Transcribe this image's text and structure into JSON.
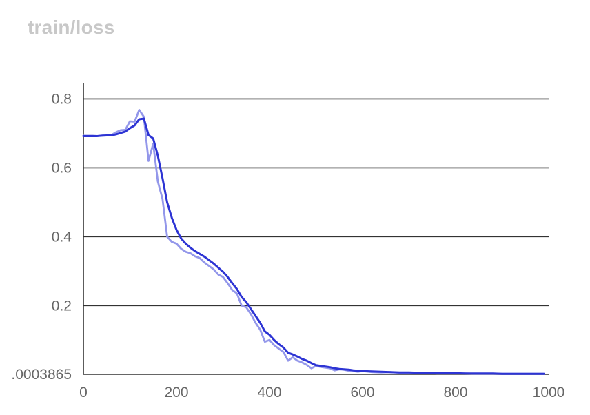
{
  "chart_data": {
    "type": "line",
    "title": "train/loss",
    "xlabel": "",
    "ylabel": "",
    "xlim": [
      0,
      1000
    ],
    "ylim": [
      0.0003865,
      0.845
    ],
    "x_ticks": [
      "0",
      "200",
      "400",
      "600",
      "800",
      "1000"
    ],
    "y_ticks": [
      {
        "value": 0.8,
        "label": "0.8"
      },
      {
        "value": 0.6,
        "label": "0.6"
      },
      {
        "value": 0.4,
        "label": "0.4"
      },
      {
        "value": 0.2,
        "label": "0.2"
      },
      {
        "value": 0.0003865,
        "label": ".0003865"
      }
    ],
    "grid": "horizontal",
    "legend": "none",
    "series": [
      {
        "role": "raw",
        "color": "#9397ea",
        "x": [
          0,
          10,
          20,
          30,
          40,
          50,
          60,
          70,
          80,
          90,
          100,
          110,
          120,
          130,
          140,
          150,
          160,
          170,
          180,
          190,
          200,
          210,
          220,
          230,
          240,
          250,
          260,
          270,
          280,
          290,
          300,
          310,
          320,
          330,
          340,
          350,
          360,
          370,
          380,
          390,
          400,
          410,
          420,
          430,
          440,
          450,
          460,
          470,
          480,
          490,
          500,
          510,
          520,
          530,
          540,
          550,
          560,
          570,
          580,
          590,
          600,
          620,
          640,
          660,
          680,
          700,
          720,
          740,
          760,
          780,
          800,
          820,
          840,
          860,
          880,
          900,
          920,
          940,
          960,
          980,
          990
        ],
        "y": [
          0.693,
          0.693,
          0.693,
          0.692,
          0.694,
          0.694,
          0.695,
          0.703,
          0.709,
          0.71,
          0.735,
          0.734,
          0.768,
          0.748,
          0.62,
          0.67,
          0.56,
          0.51,
          0.4,
          0.385,
          0.38,
          0.365,
          0.356,
          0.352,
          0.343,
          0.338,
          0.325,
          0.315,
          0.305,
          0.29,
          0.283,
          0.265,
          0.245,
          0.235,
          0.2,
          0.195,
          0.175,
          0.15,
          0.13,
          0.095,
          0.1,
          0.085,
          0.075,
          0.065,
          0.04,
          0.05,
          0.04,
          0.035,
          0.028,
          0.018,
          0.025,
          0.022,
          0.02,
          0.018,
          0.012,
          0.015,
          0.014,
          0.011,
          0.01,
          0.008,
          0.01,
          0.007,
          0.006,
          0.007,
          0.005,
          0.005,
          0.004,
          0.004,
          0.003,
          0.003,
          0.003,
          0.003,
          0.002,
          0.002,
          0.002,
          0.002,
          0.002,
          0.002,
          0.002,
          0.002,
          0.002
        ]
      },
      {
        "role": "smoothed",
        "color": "#2d34d4",
        "x": [
          0,
          10,
          20,
          30,
          40,
          50,
          60,
          70,
          80,
          90,
          100,
          110,
          120,
          130,
          140,
          150,
          160,
          170,
          180,
          190,
          200,
          210,
          220,
          230,
          240,
          250,
          260,
          270,
          280,
          290,
          300,
          310,
          320,
          330,
          340,
          350,
          360,
          370,
          380,
          390,
          400,
          410,
          420,
          430,
          440,
          450,
          460,
          470,
          480,
          490,
          500,
          510,
          520,
          530,
          540,
          550,
          560,
          570,
          580,
          590,
          600,
          620,
          640,
          660,
          680,
          700,
          720,
          740,
          760,
          780,
          800,
          820,
          840,
          860,
          880,
          900,
          920,
          940,
          960,
          980,
          990
        ],
        "y": [
          0.692,
          0.692,
          0.692,
          0.692,
          0.693,
          0.694,
          0.694,
          0.697,
          0.701,
          0.705,
          0.715,
          0.723,
          0.741,
          0.743,
          0.695,
          0.685,
          0.635,
          0.57,
          0.5,
          0.455,
          0.42,
          0.395,
          0.38,
          0.368,
          0.358,
          0.35,
          0.342,
          0.332,
          0.322,
          0.31,
          0.298,
          0.283,
          0.265,
          0.248,
          0.225,
          0.21,
          0.19,
          0.17,
          0.15,
          0.125,
          0.115,
          0.1,
          0.088,
          0.078,
          0.063,
          0.058,
          0.052,
          0.045,
          0.04,
          0.033,
          0.027,
          0.025,
          0.023,
          0.021,
          0.018,
          0.016,
          0.015,
          0.014,
          0.012,
          0.011,
          0.01,
          0.009,
          0.008,
          0.007,
          0.006,
          0.006,
          0.005,
          0.005,
          0.004,
          0.004,
          0.004,
          0.003,
          0.003,
          0.003,
          0.003,
          0.002,
          0.002,
          0.002,
          0.002,
          0.002,
          0.002
        ]
      }
    ]
  }
}
